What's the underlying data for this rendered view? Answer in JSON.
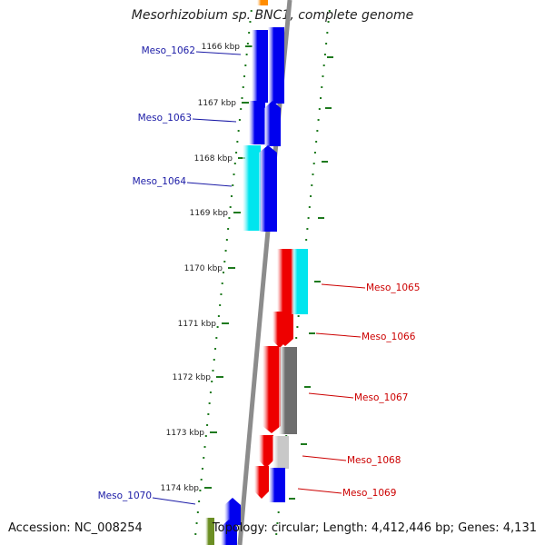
{
  "title": "Mesorhizobium sp. BNC1, complete genome",
  "accession": "Accession: NC_008254",
  "summary": "Topology: circular; Length: 4,412,446 bp; Genes: 4,131",
  "colors": {
    "forward_label": "#1a1aa6",
    "reverse_label": "#cc0000",
    "backbone": "#8c8c8c",
    "ticks": "#1e7a1e",
    "blue": "#0000ee",
    "cyan": "#00e5ee",
    "red": "#ee0000",
    "gray": "#6e6e6e",
    "light_gray": "#c8c8c8",
    "orange": "#ff8c00",
    "olive": "#6b8e23"
  },
  "scale_labels": [
    "1166 kbp",
    "1167 kbp",
    "1168 kbp",
    "1169 kbp",
    "1170 kbp",
    "1171 kbp",
    "1172 kbp",
    "1173 kbp",
    "1174 kbp"
  ],
  "gene_labels": [
    {
      "text": "Meso_1062",
      "strand": "forward"
    },
    {
      "text": "Meso_1063",
      "strand": "forward"
    },
    {
      "text": "Meso_1064",
      "strand": "forward"
    },
    {
      "text": "Meso_1065",
      "strand": "reverse"
    },
    {
      "text": "Meso_1066",
      "strand": "reverse"
    },
    {
      "text": "Meso_1067",
      "strand": "reverse"
    },
    {
      "text": "Meso_1068",
      "strand": "reverse"
    },
    {
      "text": "Meso_1069",
      "strand": "reverse"
    },
    {
      "text": "Meso_1070",
      "strand": "forward"
    }
  ]
}
